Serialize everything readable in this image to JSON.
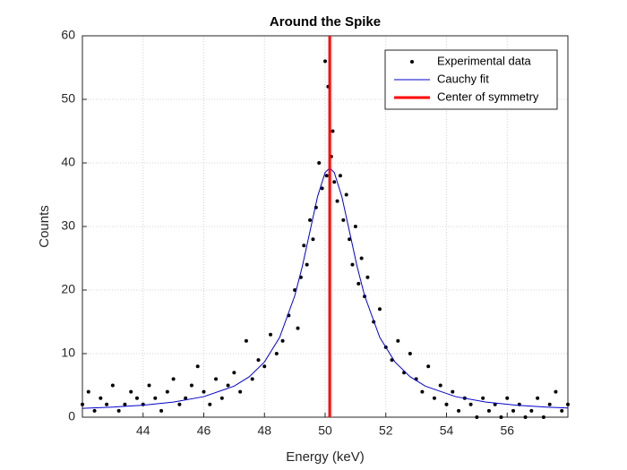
{
  "chart_data": {
    "type": "scatter",
    "title": "Around the Spike",
    "x_label": "Energy (keV)",
    "y_label": "Counts",
    "xlim": [
      42,
      58
    ],
    "ylim": [
      0,
      60
    ],
    "xticks": [
      44,
      46,
      48,
      50,
      52,
      54,
      56
    ],
    "yticks": [
      0,
      10,
      20,
      30,
      40,
      50,
      60
    ],
    "grid": true,
    "legend": "upper right",
    "series": [
      {
        "name": "Experimental data",
        "type": "scatter",
        "color": "#000000",
        "x": [
          42.0,
          42.2,
          42.4,
          42.6,
          42.8,
          43.0,
          43.2,
          43.4,
          43.6,
          43.8,
          44.0,
          44.2,
          44.4,
          44.6,
          44.8,
          45.0,
          45.2,
          45.4,
          45.6,
          45.8,
          46.0,
          46.2,
          46.4,
          46.6,
          46.8,
          47.0,
          47.2,
          47.4,
          47.6,
          47.8,
          48.0,
          48.2,
          48.4,
          48.6,
          48.8,
          49.0,
          49.1,
          49.2,
          49.3,
          49.4,
          49.5,
          49.6,
          49.7,
          49.8,
          49.9,
          50.0,
          50.05,
          50.1,
          50.2,
          50.25,
          50.3,
          50.4,
          50.5,
          50.6,
          50.7,
          50.8,
          50.9,
          51.0,
          51.1,
          51.2,
          51.3,
          51.4,
          51.6,
          51.8,
          52.0,
          52.2,
          52.4,
          52.6,
          52.8,
          53.0,
          53.2,
          53.4,
          53.6,
          53.8,
          54.0,
          54.2,
          54.4,
          54.6,
          54.8,
          55.0,
          55.2,
          55.4,
          55.6,
          55.8,
          56.0,
          56.2,
          56.4,
          56.6,
          56.8,
          57.0,
          57.2,
          57.4,
          57.6,
          57.8,
          58.0
        ],
        "values": [
          2,
          4,
          1,
          3,
          2,
          5,
          1,
          2,
          4,
          3,
          2,
          5,
          3,
          1,
          4,
          6,
          2,
          3,
          5,
          8,
          4,
          2,
          6,
          3,
          5,
          7,
          4,
          12,
          6,
          9,
          8,
          13,
          10,
          12,
          16,
          20,
          14,
          22,
          27,
          24,
          31,
          28,
          33,
          40,
          36,
          56,
          38,
          52,
          41,
          45,
          37,
          34,
          38,
          31,
          35,
          28,
          24,
          30,
          21,
          25,
          19,
          22,
          15,
          17,
          11,
          9,
          12,
          7,
          10,
          6,
          4,
          8,
          3,
          5,
          2,
          4,
          1,
          3,
          2,
          0,
          3,
          1,
          2,
          0,
          3,
          1,
          2,
          0,
          1,
          3,
          0,
          2,
          4,
          1,
          2
        ]
      },
      {
        "name": "Cauchy fit",
        "type": "line",
        "color": "#0000cc",
        "x": [
          42,
          43,
          44,
          45,
          46,
          47,
          47.5,
          48,
          48.5,
          49,
          49.25,
          49.5,
          49.75,
          50,
          50.15,
          50.3,
          50.55,
          50.8,
          51.05,
          51.3,
          51.8,
          52.3,
          52.8,
          53.3,
          54.3,
          55.3,
          56.3,
          57.3,
          58
        ],
        "values": [
          1.39,
          1.59,
          1.89,
          2.38,
          3.23,
          4.88,
          6.36,
          8.69,
          12.55,
          19.12,
          23.77,
          29.24,
          34.71,
          38.5,
          39.2,
          38.5,
          34.71,
          29.24,
          23.77,
          19.12,
          12.55,
          8.69,
          6.36,
          4.88,
          3.23,
          2.38,
          1.89,
          1.59,
          1.44
        ]
      },
      {
        "name": "Center of symmetry",
        "type": "vline",
        "color": "#ff0000",
        "x": 50.15
      }
    ]
  }
}
